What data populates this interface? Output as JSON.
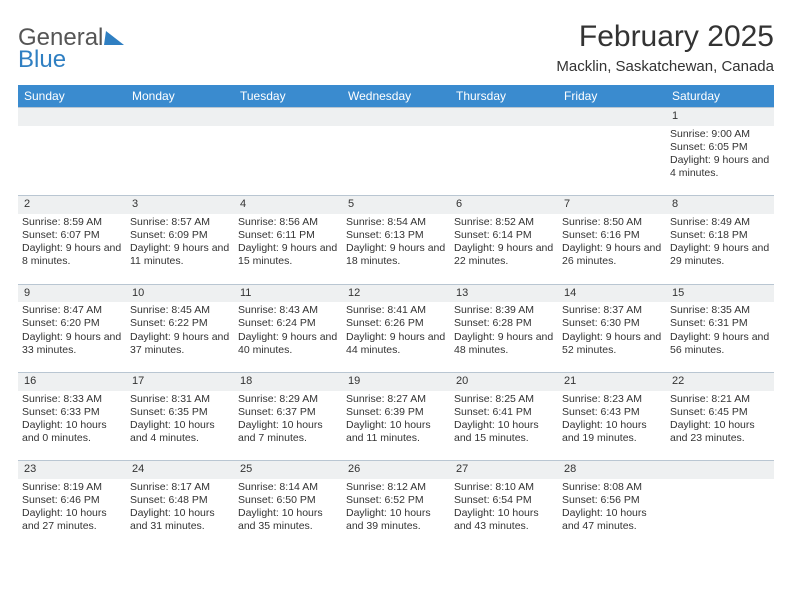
{
  "header": {
    "logo": {
      "word1": "General",
      "word2": "Blue"
    },
    "month_title": "February 2025",
    "location": "Macklin, Saskatchewan, Canada"
  },
  "colors": {
    "header_bg": "#3a8bcf",
    "daynum_bg": "#eef0f1",
    "border": "#b9c6d2",
    "logo_blue": "#2f7fc2",
    "text": "#333333",
    "page_bg": "#ffffff"
  },
  "day_headers": [
    "Sunday",
    "Monday",
    "Tuesday",
    "Wednesday",
    "Thursday",
    "Friday",
    "Saturday"
  ],
  "weeks": [
    [
      null,
      null,
      null,
      null,
      null,
      null,
      {
        "n": "1",
        "sr": "Sunrise: 9:00 AM",
        "ss": "Sunset: 6:05 PM",
        "dl": "Daylight: 9 hours and 4 minutes."
      }
    ],
    [
      {
        "n": "2",
        "sr": "Sunrise: 8:59 AM",
        "ss": "Sunset: 6:07 PM",
        "dl": "Daylight: 9 hours and 8 minutes."
      },
      {
        "n": "3",
        "sr": "Sunrise: 8:57 AM",
        "ss": "Sunset: 6:09 PM",
        "dl": "Daylight: 9 hours and 11 minutes."
      },
      {
        "n": "4",
        "sr": "Sunrise: 8:56 AM",
        "ss": "Sunset: 6:11 PM",
        "dl": "Daylight: 9 hours and 15 minutes."
      },
      {
        "n": "5",
        "sr": "Sunrise: 8:54 AM",
        "ss": "Sunset: 6:13 PM",
        "dl": "Daylight: 9 hours and 18 minutes."
      },
      {
        "n": "6",
        "sr": "Sunrise: 8:52 AM",
        "ss": "Sunset: 6:14 PM",
        "dl": "Daylight: 9 hours and 22 minutes."
      },
      {
        "n": "7",
        "sr": "Sunrise: 8:50 AM",
        "ss": "Sunset: 6:16 PM",
        "dl": "Daylight: 9 hours and 26 minutes."
      },
      {
        "n": "8",
        "sr": "Sunrise: 8:49 AM",
        "ss": "Sunset: 6:18 PM",
        "dl": "Daylight: 9 hours and 29 minutes."
      }
    ],
    [
      {
        "n": "9",
        "sr": "Sunrise: 8:47 AM",
        "ss": "Sunset: 6:20 PM",
        "dl": "Daylight: 9 hours and 33 minutes."
      },
      {
        "n": "10",
        "sr": "Sunrise: 8:45 AM",
        "ss": "Sunset: 6:22 PM",
        "dl": "Daylight: 9 hours and 37 minutes."
      },
      {
        "n": "11",
        "sr": "Sunrise: 8:43 AM",
        "ss": "Sunset: 6:24 PM",
        "dl": "Daylight: 9 hours and 40 minutes."
      },
      {
        "n": "12",
        "sr": "Sunrise: 8:41 AM",
        "ss": "Sunset: 6:26 PM",
        "dl": "Daylight: 9 hours and 44 minutes."
      },
      {
        "n": "13",
        "sr": "Sunrise: 8:39 AM",
        "ss": "Sunset: 6:28 PM",
        "dl": "Daylight: 9 hours and 48 minutes."
      },
      {
        "n": "14",
        "sr": "Sunrise: 8:37 AM",
        "ss": "Sunset: 6:30 PM",
        "dl": "Daylight: 9 hours and 52 minutes."
      },
      {
        "n": "15",
        "sr": "Sunrise: 8:35 AM",
        "ss": "Sunset: 6:31 PM",
        "dl": "Daylight: 9 hours and 56 minutes."
      }
    ],
    [
      {
        "n": "16",
        "sr": "Sunrise: 8:33 AM",
        "ss": "Sunset: 6:33 PM",
        "dl": "Daylight: 10 hours and 0 minutes."
      },
      {
        "n": "17",
        "sr": "Sunrise: 8:31 AM",
        "ss": "Sunset: 6:35 PM",
        "dl": "Daylight: 10 hours and 4 minutes."
      },
      {
        "n": "18",
        "sr": "Sunrise: 8:29 AM",
        "ss": "Sunset: 6:37 PM",
        "dl": "Daylight: 10 hours and 7 minutes."
      },
      {
        "n": "19",
        "sr": "Sunrise: 8:27 AM",
        "ss": "Sunset: 6:39 PM",
        "dl": "Daylight: 10 hours and 11 minutes."
      },
      {
        "n": "20",
        "sr": "Sunrise: 8:25 AM",
        "ss": "Sunset: 6:41 PM",
        "dl": "Daylight: 10 hours and 15 minutes."
      },
      {
        "n": "21",
        "sr": "Sunrise: 8:23 AM",
        "ss": "Sunset: 6:43 PM",
        "dl": "Daylight: 10 hours and 19 minutes."
      },
      {
        "n": "22",
        "sr": "Sunrise: 8:21 AM",
        "ss": "Sunset: 6:45 PM",
        "dl": "Daylight: 10 hours and 23 minutes."
      }
    ],
    [
      {
        "n": "23",
        "sr": "Sunrise: 8:19 AM",
        "ss": "Sunset: 6:46 PM",
        "dl": "Daylight: 10 hours and 27 minutes."
      },
      {
        "n": "24",
        "sr": "Sunrise: 8:17 AM",
        "ss": "Sunset: 6:48 PM",
        "dl": "Daylight: 10 hours and 31 minutes."
      },
      {
        "n": "25",
        "sr": "Sunrise: 8:14 AM",
        "ss": "Sunset: 6:50 PM",
        "dl": "Daylight: 10 hours and 35 minutes."
      },
      {
        "n": "26",
        "sr": "Sunrise: 8:12 AM",
        "ss": "Sunset: 6:52 PM",
        "dl": "Daylight: 10 hours and 39 minutes."
      },
      {
        "n": "27",
        "sr": "Sunrise: 8:10 AM",
        "ss": "Sunset: 6:54 PM",
        "dl": "Daylight: 10 hours and 43 minutes."
      },
      {
        "n": "28",
        "sr": "Sunrise: 8:08 AM",
        "ss": "Sunset: 6:56 PM",
        "dl": "Daylight: 10 hours and 47 minutes."
      },
      null
    ]
  ]
}
